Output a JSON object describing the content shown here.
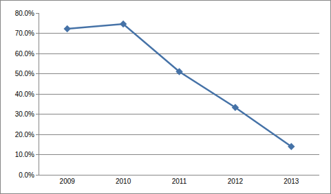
{
  "chart_data": {
    "type": "line",
    "categories": [
      "2009",
      "2010",
      "2011",
      "2012",
      "2013"
    ],
    "values": [
      72.2,
      74.6,
      51.0,
      33.3,
      14.0
    ],
    "color": "#4572A7",
    "marker": "diamond",
    "ylim": [
      0,
      80
    ],
    "yticks": [
      {
        "value": 0,
        "label": "0.0%"
      },
      {
        "value": 10,
        "label": "10.0%"
      },
      {
        "value": 20,
        "label": "20.0%"
      },
      {
        "value": 30,
        "label": "30.0%"
      },
      {
        "value": 40,
        "label": "40.0%"
      },
      {
        "value": 50,
        "label": "50.0%"
      },
      {
        "value": 60,
        "label": "60.0%"
      },
      {
        "value": 70,
        "label": "70.0%"
      },
      {
        "value": 80,
        "label": "80.0%"
      }
    ],
    "grid": true
  }
}
